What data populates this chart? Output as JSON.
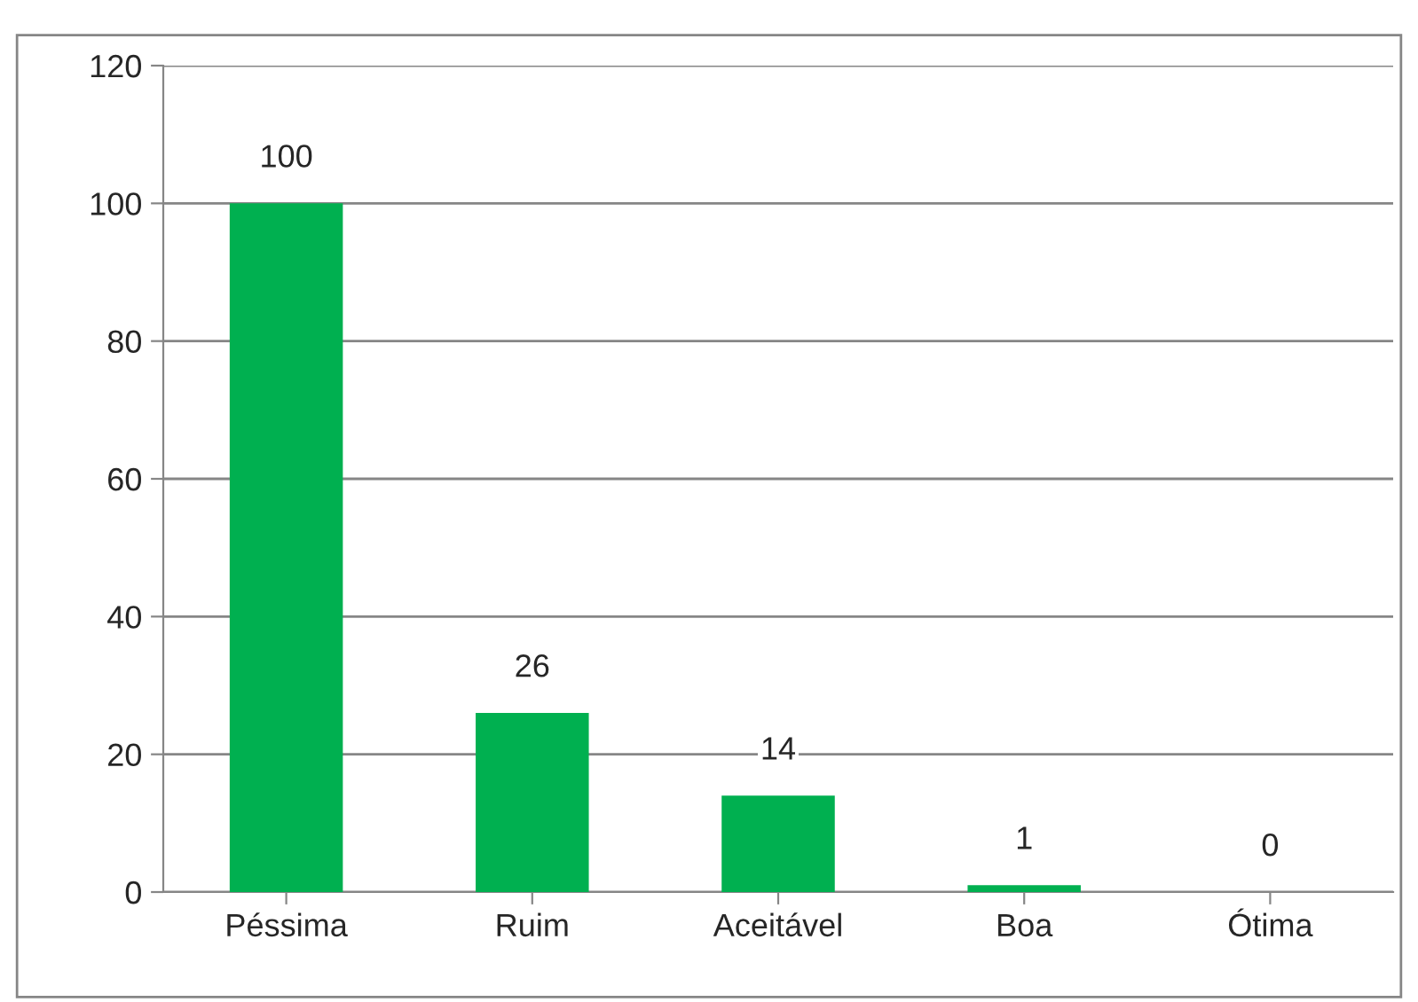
{
  "chart_data": {
    "type": "bar",
    "categories": [
      "Péssima",
      "Ruim",
      "Aceitável",
      "Boa",
      "Ótima"
    ],
    "values": [
      100,
      26,
      14,
      1,
      0
    ],
    "color": "#00b050",
    "ylim": [
      0,
      120
    ],
    "yticks": [
      0,
      20,
      40,
      60,
      80,
      100,
      120
    ],
    "grid": "y",
    "data_labels": true
  }
}
